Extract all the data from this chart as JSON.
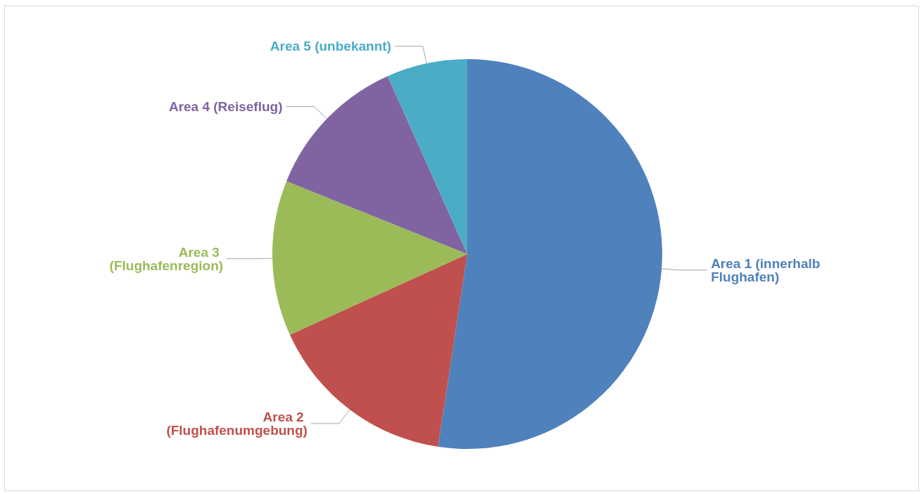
{
  "chart_data": {
    "type": "pie",
    "categories": [
      "Area 1 (innerhalb Flughafen)",
      "Area 2 (Flughafenumgebung)",
      "Area 3 (Flughafenregion)",
      "Area 4 (Reiseflug)",
      "Area 5 (unbekannt)"
    ],
    "values": [
      52.4,
      15.8,
      12.9,
      12.2,
      6.7
    ],
    "colors": [
      "#4f81bd",
      "#c0504d",
      "#9bbb59",
      "#8064a2",
      "#4bacc6"
    ]
  }
}
